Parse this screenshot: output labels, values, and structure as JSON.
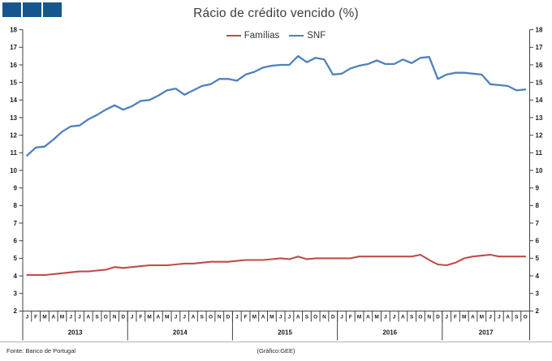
{
  "logo": {
    "color": "#16568e",
    "square_count": 3
  },
  "title": "Rácio de crédito vencido (%)",
  "legend": {
    "items": [
      {
        "label": "Famílias",
        "color": "#bf4c4a"
      },
      {
        "label": "SNF",
        "color": "#4f81bd"
      }
    ]
  },
  "footer": {
    "source": "Fonte: Banco de Portugal",
    "credit": "(Gráfico:GEE)"
  },
  "chart_data": {
    "type": "line",
    "title": "Rácio de crédito vencido (%)",
    "xlabel": "",
    "ylabel": "",
    "ylim": [
      2,
      18
    ],
    "ytick_interval": 1,
    "dual_y_axis": true,
    "grid": false,
    "legend_position": "top-center",
    "x_years": [
      {
        "label": "2013",
        "months": [
          "J",
          "F",
          "M",
          "A",
          "M",
          "J",
          "J",
          "A",
          "S",
          "O",
          "N",
          "D"
        ]
      },
      {
        "label": "2014",
        "months": [
          "J",
          "F",
          "M",
          "A",
          "M",
          "J",
          "J",
          "A",
          "S",
          "O",
          "N",
          "D"
        ]
      },
      {
        "label": "2015",
        "months": [
          "J",
          "F",
          "M",
          "A",
          "M",
          "J",
          "J",
          "A",
          "S",
          "O",
          "N",
          "D"
        ]
      },
      {
        "label": "2016",
        "months": [
          "J",
          "F",
          "M",
          "A",
          "M",
          "J",
          "J",
          "A",
          "S",
          "O",
          "N",
          "D"
        ]
      },
      {
        "label": "2017",
        "months": [
          "J",
          "F",
          "M",
          "A",
          "M",
          "J",
          "J",
          "A",
          "S",
          "O"
        ]
      }
    ],
    "series": [
      {
        "name": "Famílias",
        "color": "#bf4c4a",
        "values": [
          4.05,
          4.05,
          4.05,
          4.1,
          4.15,
          4.2,
          4.25,
          4.25,
          4.3,
          4.35,
          4.5,
          4.45,
          4.5,
          4.55,
          4.6,
          4.6,
          4.6,
          4.65,
          4.7,
          4.7,
          4.75,
          4.8,
          4.8,
          4.8,
          4.85,
          4.9,
          4.9,
          4.9,
          4.95,
          5.0,
          4.95,
          5.1,
          4.95,
          5.0,
          5.0,
          5.0,
          5.0,
          5.0,
          5.1,
          5.1,
          5.1,
          5.1,
          5.1,
          5.1,
          5.1,
          5.2,
          4.9,
          4.65,
          4.6,
          4.75,
          5.0,
          5.1,
          5.15,
          5.2,
          5.1,
          5.1,
          5.1,
          5.1
        ]
      },
      {
        "name": "SNF",
        "color": "#4f81bd",
        "values": [
          10.85,
          11.3,
          11.35,
          11.75,
          12.2,
          12.5,
          12.55,
          12.9,
          13.15,
          13.45,
          13.7,
          13.45,
          13.65,
          13.95,
          14.0,
          14.25,
          14.55,
          14.65,
          14.3,
          14.55,
          14.8,
          14.9,
          15.2,
          15.2,
          15.1,
          15.45,
          15.6,
          15.85,
          15.95,
          16.0,
          16.0,
          16.5,
          16.15,
          16.4,
          16.3,
          15.45,
          15.5,
          15.8,
          15.95,
          16.05,
          16.25,
          16.05,
          16.05,
          16.3,
          16.1,
          16.4,
          16.45,
          15.2,
          15.45,
          15.55,
          15.55,
          15.5,
          15.45,
          14.9,
          14.85,
          14.8,
          14.55,
          14.6
        ]
      }
    ]
  }
}
